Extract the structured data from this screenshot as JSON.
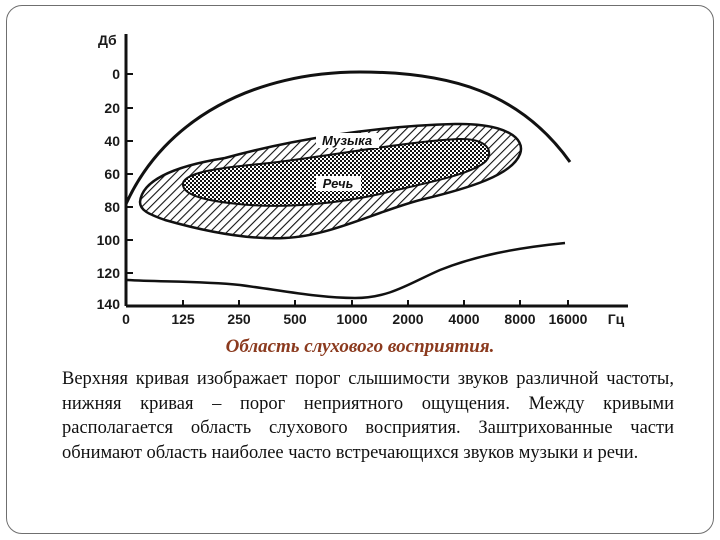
{
  "figure": {
    "y_axis": {
      "unit": "Дб",
      "ticks": [
        "0",
        "20",
        "40",
        "60",
        "80",
        "100",
        "120",
        "140"
      ]
    },
    "x_axis": {
      "unit": "Гц",
      "ticks": [
        "0",
        "125",
        "250",
        "500",
        "1000",
        "2000",
        "4000",
        "8000",
        "16000"
      ]
    },
    "regions": {
      "music_label": "Музыка",
      "speech_label": "Речь"
    }
  },
  "caption": {
    "title": "Область слухового восприятия.",
    "text": "Верхняя кривая изображает порог слышимости звуков различной частоты, нижняя кривая – порог неприятного ощущения. Между кривыми располагается область слухового восприятия. Заштрихованные части обнимают область наиболее часто встречающихся звуков музыки и речи."
  }
}
